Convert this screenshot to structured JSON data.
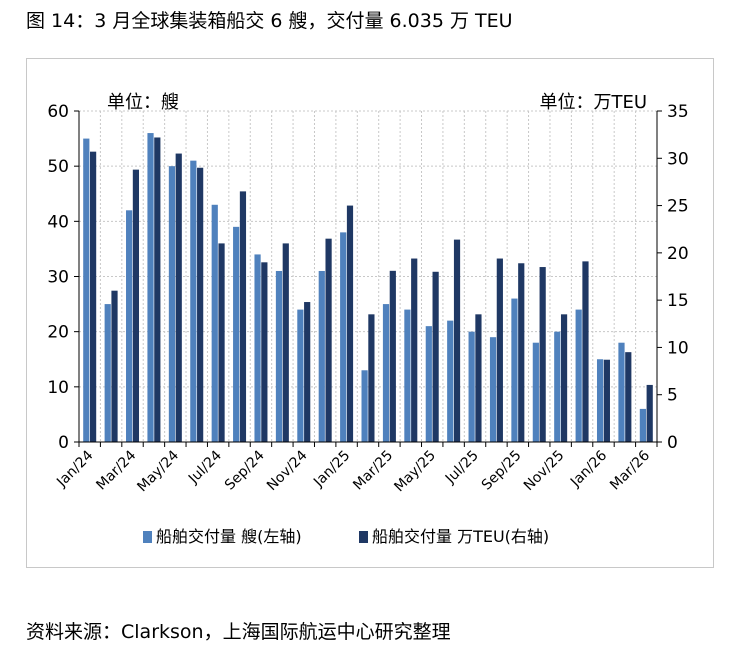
{
  "figure_title": "图 14：3 月全球集装箱船交 6 艘，交付量 6.035 万 TEU",
  "source_note": "资料来源：Clarkson，上海国际航运中心研究整理",
  "colors": {
    "left_series": "#4f81bd",
    "right_series": "#1f3864",
    "grid": "#c8c8c8",
    "axis": "#000000"
  },
  "chart_data": {
    "type": "bar",
    "title": "",
    "left_unit_label": "单位：艘",
    "right_unit_label": "单位：万TEU",
    "categories": [
      "Jan/24",
      "Feb/24",
      "Mar/24",
      "Apr/24",
      "May/24",
      "Jun/24",
      "Jul/24",
      "Aug/24",
      "Sep/24",
      "Oct/24",
      "Nov/24",
      "Dec/24",
      "Jan/25",
      "Feb/25",
      "Mar/25",
      "Apr/25",
      "May/25",
      "Jun/25",
      "Jul/25",
      "Aug/25",
      "Sep/25",
      "Oct/25",
      "Nov/25",
      "Dec/25",
      "Jan/26",
      "Feb/26",
      "Mar/26"
    ],
    "x_tick_labels": [
      "Jan/24",
      "Mar/24",
      "May/24",
      "Jul/24",
      "Sep/24",
      "Nov/24",
      "Jan/25",
      "Mar/25",
      "May/25",
      "Jul/25",
      "Sep/25",
      "Nov/25",
      "Jan/26",
      "Mar/26"
    ],
    "y_left": {
      "min": 0,
      "max": 60,
      "ticks": [
        "0",
        "10",
        "20",
        "30",
        "40",
        "50",
        "60"
      ]
    },
    "y_right": {
      "min": 0,
      "max": 35,
      "ticks": [
        "0",
        "5",
        "10",
        "15",
        "20",
        "25",
        "30",
        "35"
      ]
    },
    "grid": true,
    "legend_position": "bottom",
    "series": [
      {
        "name": "船舶交付量 艘(左轴)",
        "axis": "left",
        "values": [
          55,
          25,
          42,
          56,
          50,
          51,
          43,
          39,
          34,
          31,
          24,
          31,
          38,
          13,
          25,
          24,
          21,
          22,
          20,
          19,
          26,
          18,
          20,
          24,
          15,
          18,
          6
        ]
      },
      {
        "name": "船舶交付量 万TEU(右轴)",
        "axis": "right",
        "values": [
          30.7,
          16.0,
          28.8,
          32.2,
          30.5,
          29.0,
          21.0,
          26.5,
          19.0,
          21.0,
          14.8,
          21.5,
          25.0,
          13.5,
          18.1,
          19.4,
          18.0,
          21.4,
          13.5,
          19.4,
          18.9,
          18.5,
          13.5,
          19.1,
          8.7,
          9.5,
          6.035
        ]
      }
    ]
  }
}
